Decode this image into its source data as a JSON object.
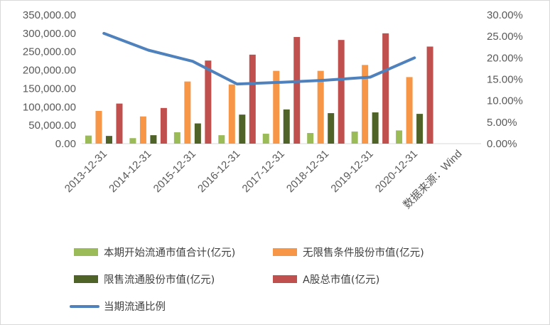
{
  "chart_data": {
    "type": "bar+line",
    "categories": [
      "2013-12-31",
      "2014-12-31",
      "2015-12-31",
      "2016-12-31",
      "2017-12-31",
      "2018-12-31",
      "2019-12-31",
      "2020-12-31",
      "数据来源：Wind"
    ],
    "y_left": {
      "ylim": [
        0,
        350000
      ],
      "ticks": [
        "0.00",
        "50,000.00",
        "100,000.00",
        "150,000.00",
        "200,000.00",
        "250,000.00",
        "300,000.00",
        "350,000.00"
      ],
      "tick_values": [
        0,
        50000,
        100000,
        150000,
        200000,
        250000,
        300000,
        350000
      ]
    },
    "y_right": {
      "ylim": [
        0,
        0.3
      ],
      "ticks": [
        "0.00%",
        "5.00%",
        "10.00%",
        "15.00%",
        "20.00%",
        "25.00%",
        "30.00%"
      ],
      "tick_values": [
        0,
        0.05,
        0.1,
        0.15,
        0.2,
        0.25,
        0.3
      ]
    },
    "grid": false,
    "legend_position": "bottom",
    "series": [
      {
        "name": "本期开始流通市值合计(亿元)",
        "type": "bar",
        "axis": "left",
        "color": "#9BBB59",
        "values": [
          22000,
          15000,
          31000,
          23000,
          27000,
          29000,
          33000,
          36000,
          null
        ]
      },
      {
        "name": "无限售条件股份市值(亿元)",
        "type": "bar",
        "axis": "left",
        "color": "#F79646",
        "values": [
          89000,
          74000,
          169000,
          161000,
          198000,
          198000,
          214000,
          181000,
          null
        ]
      },
      {
        "name": "限售流通股份市值(亿元)",
        "type": "bar",
        "axis": "left",
        "color": "#4F6228",
        "values": [
          21000,
          23000,
          55000,
          79000,
          93000,
          83000,
          85000,
          81000,
          null
        ]
      },
      {
        "name": "A股总市值(亿元)",
        "type": "bar",
        "axis": "left",
        "color": "#C0504D",
        "values": [
          109000,
          97000,
          226000,
          242000,
          290000,
          282000,
          300000,
          264000,
          null
        ]
      },
      {
        "name": "当期流通比例",
        "type": "line",
        "axis": "right",
        "color": "#4F81BD",
        "values": [
          0.257,
          0.218,
          0.192,
          0.139,
          0.143,
          0.148,
          0.155,
          0.2,
          null
        ]
      }
    ]
  }
}
